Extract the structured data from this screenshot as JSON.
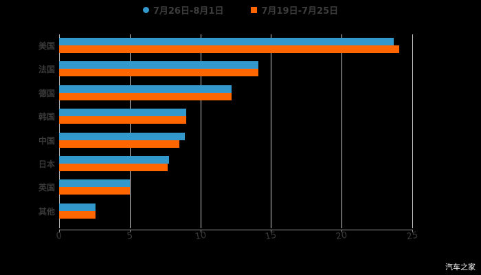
{
  "chart_data": {
    "type": "bar",
    "orientation": "horizontal",
    "title": "",
    "xlabel": "",
    "ylabel": "",
    "xlim": [
      0,
      25
    ],
    "x_ticks": [
      "0",
      "5",
      "10",
      "15",
      "20",
      "25"
    ],
    "grid": true,
    "legend_position": "top",
    "categories": [
      "美国",
      "法国",
      "德国",
      "韩国",
      "中国",
      "日本",
      "英国",
      "其他"
    ],
    "series": [
      {
        "name": "7月26日-8月1日",
        "color": "#3399cc",
        "values": [
          23.7,
          14.1,
          12.2,
          9.0,
          8.9,
          7.8,
          5.0,
          2.6
        ]
      },
      {
        "name": "7月19日-7月25日",
        "color": "#ff6600",
        "values": [
          24.1,
          14.1,
          12.2,
          9.0,
          8.5,
          7.7,
          5.0,
          2.6
        ]
      }
    ]
  },
  "legend": {
    "series1": "7月26日-8月1日",
    "series2": "7月19日-7月25日"
  },
  "watermark": "汽车之家"
}
